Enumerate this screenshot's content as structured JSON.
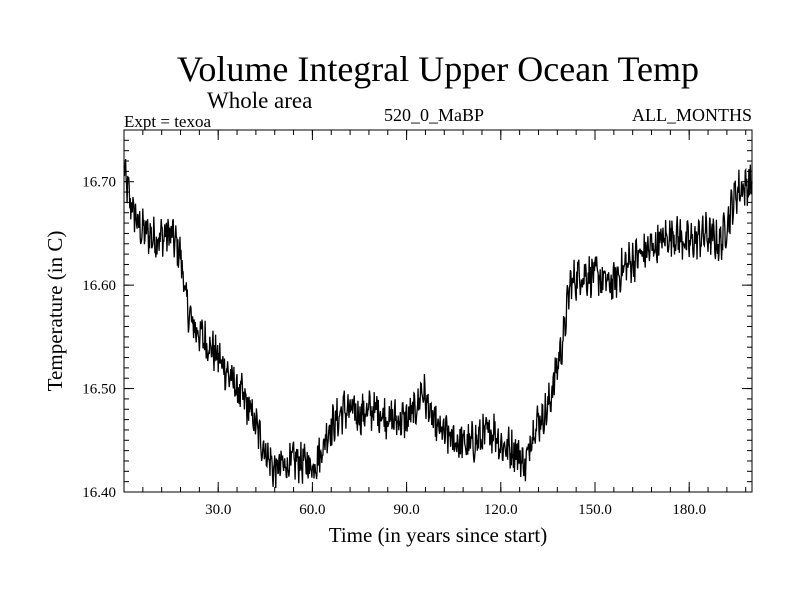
{
  "chart_data": {
    "type": "line",
    "title": "Volume Integral Upper Ocean Temp",
    "subtitle": "Whole area",
    "experiment": "Expt = texoa",
    "period": "520_0_MaBP",
    "months": "ALL_MONTHS",
    "xlabel": "Time (in years since start)",
    "ylabel": "Temperature (in C)",
    "xlim": [
      0,
      200
    ],
    "ylim": [
      16.4,
      16.75
    ],
    "x_ticks": [
      30,
      60,
      90,
      120,
      150,
      180
    ],
    "x_tick_labels": [
      "30.0",
      "60.0",
      "90.0",
      "120.0",
      "150.0",
      "180.0"
    ],
    "y_ticks": [
      16.4,
      16.5,
      16.6,
      16.7
    ],
    "y_tick_labels": [
      "16.40",
      "16.50",
      "16.60",
      "16.70"
    ],
    "series": [
      {
        "name": "Temperature",
        "color": "#000000",
        "x": [
          0,
          2,
          5,
          10,
          15,
          18,
          20,
          22,
          25,
          30,
          35,
          40,
          45,
          48,
          50,
          55,
          60,
          63,
          65,
          68,
          70,
          75,
          80,
          85,
          90,
          93,
          95,
          98,
          100,
          105,
          110,
          115,
          118,
          120,
          125,
          128,
          130,
          135,
          140,
          142,
          145,
          150,
          155,
          160,
          165,
          170,
          175,
          180,
          185,
          190,
          195,
          200
        ],
        "values": [
          16.71,
          16.68,
          16.655,
          16.645,
          16.65,
          16.63,
          16.58,
          16.56,
          16.55,
          16.53,
          16.505,
          16.48,
          16.44,
          16.42,
          16.425,
          16.43,
          16.425,
          16.44,
          16.46,
          16.47,
          16.48,
          16.475,
          16.48,
          16.47,
          16.47,
          16.48,
          16.5,
          16.47,
          16.46,
          16.45,
          16.445,
          16.455,
          16.46,
          16.445,
          16.44,
          16.425,
          16.46,
          16.48,
          16.55,
          16.6,
          16.61,
          16.61,
          16.6,
          16.62,
          16.63,
          16.64,
          16.65,
          16.64,
          16.65,
          16.64,
          16.69,
          16.7
        ]
      }
    ]
  }
}
